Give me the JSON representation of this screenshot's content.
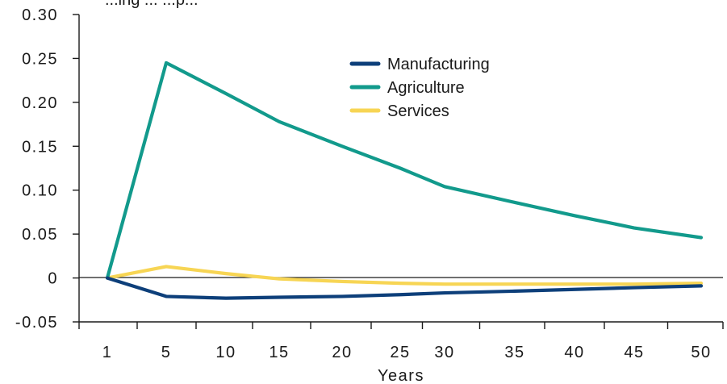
{
  "chart_data": {
    "type": "line",
    "title": "",
    "clipped_title_fragment": "...ing ... ...p...",
    "xlabel": "Years",
    "ylabel": "",
    "x": [
      1,
      5,
      10,
      15,
      20,
      25,
      30,
      35,
      40,
      45,
      50
    ],
    "x_tick_labels": [
      "1",
      "5",
      "10",
      "15",
      "20",
      "25",
      "30",
      "35",
      "40",
      "45",
      "50"
    ],
    "ylim": [
      -0.05,
      0.3
    ],
    "y_ticks": [
      -0.05,
      0,
      0.05,
      0.1,
      0.15,
      0.2,
      0.25,
      0.3
    ],
    "y_tick_labels": [
      "-0.05",
      "0",
      "0.05",
      "0.10",
      "0.15",
      "0.20",
      "0.25",
      "0.30"
    ],
    "grid": false,
    "zero_line": true,
    "legend_position": "top-center",
    "series": [
      {
        "name": "Manufacturing",
        "color": "#0d3f7a",
        "values": [
          0,
          -0.021,
          -0.023,
          -0.022,
          -0.021,
          -0.019,
          -0.017,
          -0.015,
          -0.013,
          -0.011,
          -0.009
        ]
      },
      {
        "name": "Agriculture",
        "color": "#129a8c",
        "values": [
          0,
          0.245,
          0.21,
          0.178,
          0.15,
          0.125,
          0.104,
          0.086,
          0.071,
          0.057,
          0.046
        ]
      },
      {
        "name": "Services",
        "color": "#f7d554",
        "values": [
          0,
          0.013,
          0.005,
          -0.001,
          -0.004,
          -0.006,
          -0.007,
          -0.007,
          -0.007,
          -0.007,
          -0.006
        ]
      }
    ]
  }
}
